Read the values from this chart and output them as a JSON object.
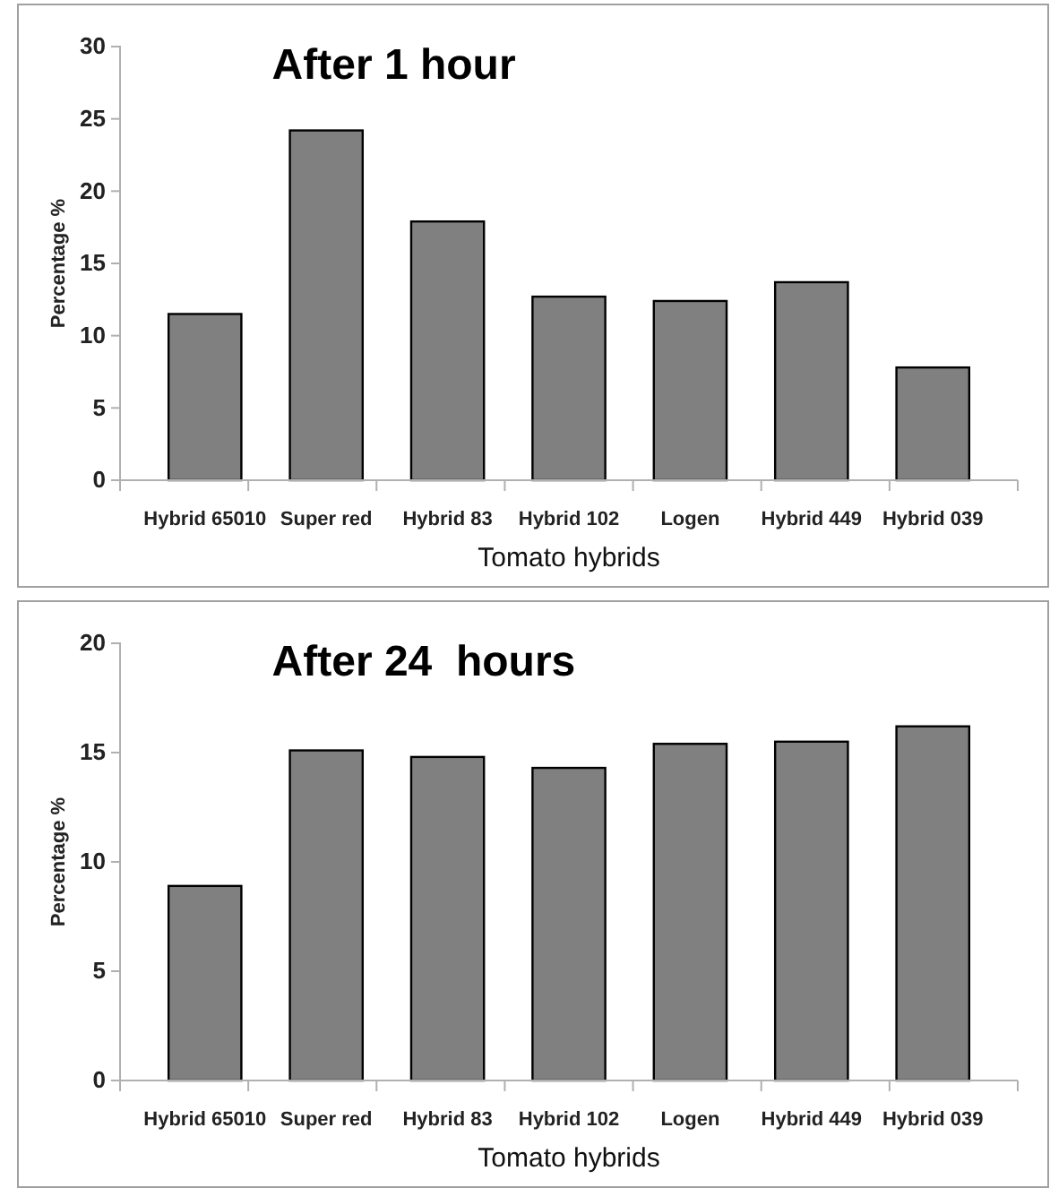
{
  "chart_data": [
    {
      "type": "bar",
      "title": "After 1 hour",
      "xlabel": "Tomato hybrids",
      "ylabel": "Percentage %",
      "categories": [
        "Hybrid 65010",
        "Super red",
        "Hybrid 83",
        "Hybrid 102",
        "Logen",
        "Hybrid 449",
        "Hybrid 039"
      ],
      "values": [
        11.5,
        24.2,
        17.9,
        12.7,
        12.4,
        13.7,
        7.8
      ],
      "color": "#808080",
      "ylim": [
        0,
        30
      ],
      "yticks": [
        0,
        5,
        10,
        15,
        20,
        25,
        30
      ],
      "grid": false
    },
    {
      "type": "bar",
      "title": "After 24  hours",
      "xlabel": "Tomato hybrids",
      "ylabel": "Percentage %",
      "categories": [
        "Hybrid 65010",
        "Super red",
        "Hybrid 83",
        "Hybrid 102",
        "Logen",
        "Hybrid 449",
        "Hybrid 039"
      ],
      "values": [
        8.9,
        15.1,
        14.8,
        14.3,
        15.4,
        15.5,
        16.2
      ],
      "color": "#808080",
      "ylim": [
        0,
        20
      ],
      "yticks": [
        0,
        5,
        10,
        15,
        20
      ],
      "grid": false
    }
  ]
}
